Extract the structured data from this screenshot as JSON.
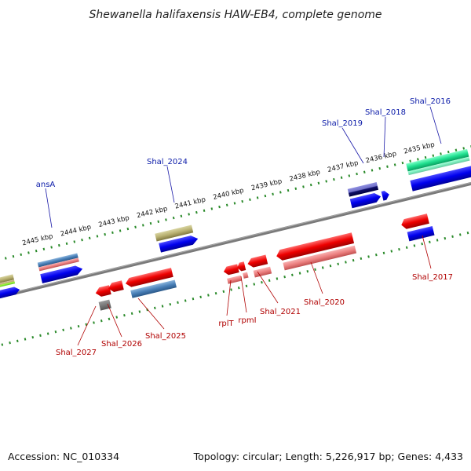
{
  "title": "Shewanella halifaxensis HAW-EB4, complete genome",
  "footer": {
    "accession": "Accession: NC_010334",
    "topology": "Topology: circular; Length: 5,226,917 bp; Genes: 4,433"
  },
  "scale_labels": [
    "2445 kbp",
    "2444 kbp",
    "2443 kbp",
    "2442 kbp",
    "2441 kbp",
    "2440 kbp",
    "2439 kbp",
    "2438 kbp",
    "2437 kbp",
    "2436 kbp",
    "2435 kbp"
  ],
  "gene_labels_forward": [
    "ansA",
    "Shal_2024",
    "Shal_2019",
    "Shal_2018",
    "Shal_2016"
  ],
  "gene_labels_reverse": [
    "Shal_2027",
    "Shal_2026",
    "Shal_2025",
    "rplT",
    "rpmI",
    "Shal_2021",
    "Shal_2020",
    "Shal_2017"
  ],
  "colors": {
    "backbone": "#808080",
    "forward_cds": "#1010e0",
    "reverse_cds": "#ee1010",
    "tick": "#2a8a2a",
    "label_forward": "#0a1aa8",
    "label_reverse": "#b00000"
  }
}
